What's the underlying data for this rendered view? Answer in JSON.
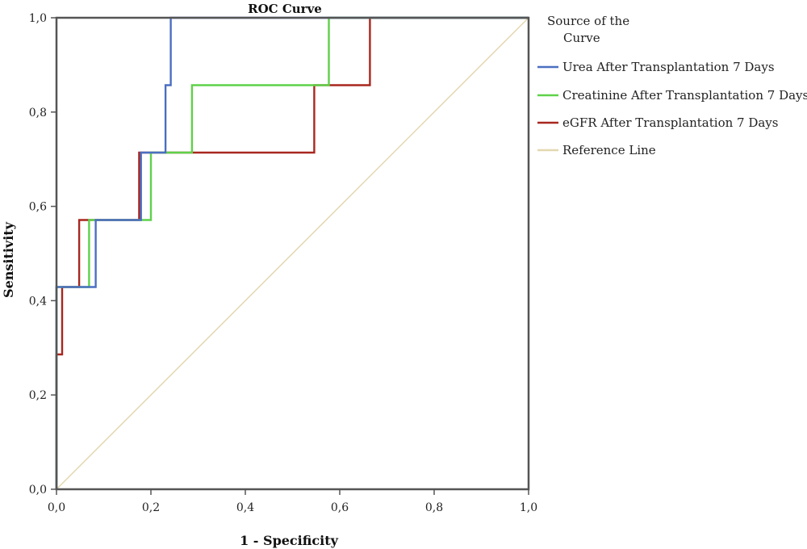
{
  "chart_data": {
    "type": "line",
    "title": "ROC Curve",
    "xlabel": "1 - Specificity",
    "ylabel": "Sensitivity",
    "xlim": [
      0,
      1
    ],
    "ylim": [
      0,
      1
    ],
    "xticks": [
      {
        "v": 0,
        "label": "0,0"
      },
      {
        "v": 0.2,
        "label": "0,2"
      },
      {
        "v": 0.4,
        "label": "0,4"
      },
      {
        "v": 0.6,
        "label": "0,6"
      },
      {
        "v": 0.8,
        "label": "0,8"
      },
      {
        "v": 1,
        "label": "1,0"
      }
    ],
    "yticks": [
      {
        "v": 0,
        "label": "0,0"
      },
      {
        "v": 0.2,
        "label": "0,2"
      },
      {
        "v": 0.4,
        "label": "0,4"
      },
      {
        "v": 0.6,
        "label": "0,6"
      },
      {
        "v": 0.8,
        "label": "0,8"
      },
      {
        "v": 1,
        "label": "1,0"
      }
    ],
    "grid": false,
    "legend": {
      "title": "Source of the Curve",
      "position": "right"
    },
    "series": [
      {
        "name": "Urea After Transplantation 7 Days",
        "color": "#4a6fc1",
        "x": [
          0,
          0,
          0.083,
          0.083,
          0.179,
          0.179,
          0.231,
          0.231,
          0.242,
          0.242,
          1
        ],
        "y": [
          0,
          0.429,
          0.429,
          0.571,
          0.571,
          0.714,
          0.714,
          0.857,
          0.857,
          1,
          1
        ]
      },
      {
        "name": "Creatinine After Transplantation 7 Days",
        "color": "#5fd14a",
        "x": [
          0,
          0,
          0.069,
          0.069,
          0.2,
          0.2,
          0.287,
          0.287,
          0.577,
          0.577,
          1
        ],
        "y": [
          0,
          0.429,
          0.429,
          0.571,
          0.571,
          0.714,
          0.714,
          0.857,
          0.857,
          1,
          1
        ]
      },
      {
        "name": "eGFR After Transplantation 7 Days",
        "color": "#a8271f",
        "x": [
          0,
          0,
          0.012,
          0.012,
          0.048,
          0.048,
          0.175,
          0.175,
          0.546,
          0.546,
          0.664,
          0.664,
          1
        ],
        "y": [
          0,
          0.286,
          0.286,
          0.429,
          0.429,
          0.571,
          0.571,
          0.714,
          0.714,
          0.857,
          0.857,
          1,
          1
        ]
      },
      {
        "name": "Reference Line",
        "color": "#e3d7b0",
        "x": [
          0,
          1
        ],
        "y": [
          0,
          1
        ]
      }
    ]
  }
}
